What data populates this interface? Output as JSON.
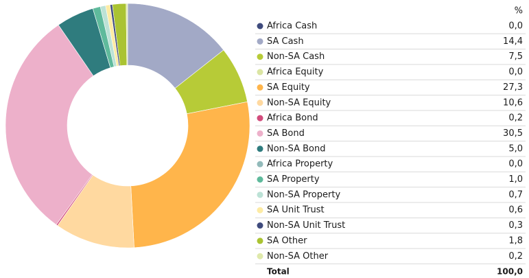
{
  "chart_data": {
    "type": "pie",
    "donut": true,
    "value_header": "%",
    "categories": [
      "Africa Cash",
      "SA Cash",
      "Non-SA Cash",
      "Africa Equity",
      "SA Equity",
      "Non-SA Equity",
      "Africa Bond",
      "SA Bond",
      "Non-SA Bond",
      "Africa Property",
      "SA Property",
      "Non-SA Property",
      "SA Unit Trust",
      "Non-SA Unit Trust",
      "SA Other",
      "Non-SA Other"
    ],
    "values": [
      0,
      14.4,
      7.5,
      0,
      27.3,
      10.6,
      0.2,
      30.5,
      5,
      0,
      1,
      0.7,
      0.6,
      0.3,
      1.8,
      0.2
    ],
    "value_labels": [
      "0,0",
      "14,4",
      "7,5",
      "0,0",
      "27,3",
      "10,6",
      "0,2",
      "30,5",
      "5,0",
      "0,0",
      "1,0",
      "0,7",
      "0,6",
      "0,3",
      "1,8",
      "0,2"
    ],
    "colors": [
      "#3f4b7d",
      "#a2a9c6",
      "#b7cb37",
      "#dbe5a3",
      "#ffb54b",
      "#ffd9a0",
      "#d24c7c",
      "#edb0ca",
      "#2f7c7e",
      "#92baba",
      "#5fba9c",
      "#bce2d6",
      "#fdeba4",
      "#3f4b7d",
      "#aac332",
      "#dfe9ab"
    ],
    "total": {
      "name": "Total",
      "value": 100,
      "label": "100,0"
    }
  }
}
